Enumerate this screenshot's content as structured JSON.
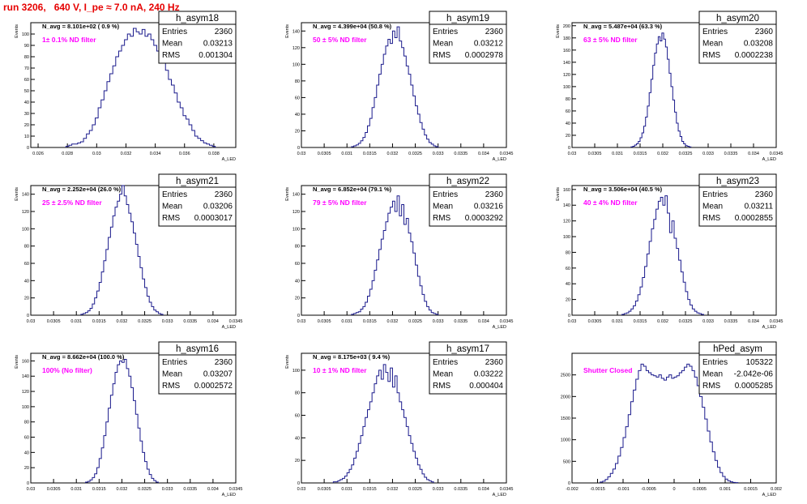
{
  "page": {
    "title": "run 3206,   640 V, I_pe ≈ 7.0 nA, 240 Hz"
  },
  "colors": {
    "histogram": "#1a1a8c",
    "annotation": "#ff00ff",
    "title": "#e60000",
    "axis": "#000000"
  },
  "chart_data": [
    {
      "type": "bar",
      "name": "h_asym18",
      "header": "N_avg = 8.101e+02 ( 0.9 %)",
      "annotation": "1± 0.1% ND filter",
      "stats": {
        "entries": "2360",
        "mean": "0.03213",
        "rms": "0.001304"
      },
      "xlabel": "A_LED",
      "ylabel": "Events",
      "xlim": [
        0.0255,
        0.0395
      ],
      "ylim": [
        0,
        110
      ],
      "xticks": [
        0.026,
        0.028,
        0.03,
        0.032,
        0.034,
        0.036,
        0.038
      ],
      "yticks": [
        0,
        10,
        20,
        30,
        40,
        50,
        60,
        70,
        80,
        90,
        100
      ],
      "hist": {
        "x_start": 0.0279,
        "bin_width": 0.0002,
        "values": [
          1,
          2,
          3,
          3,
          4,
          5,
          8,
          12,
          15,
          20,
          26,
          35,
          42,
          50,
          58,
          65,
          72,
          80,
          85,
          90,
          95,
          100,
          98,
          105,
          102,
          100,
          104,
          98,
          100,
          95,
          90,
          85,
          80,
          75,
          68,
          60,
          55,
          48,
          40,
          35,
          28,
          25,
          20,
          15,
          10,
          8,
          6,
          4,
          3,
          2,
          1
        ]
      }
    },
    {
      "type": "bar",
      "name": "h_asym19",
      "header": "N_avg = 4.399e+04 (50.8 %)",
      "annotation": "50 ± 5% ND filter",
      "stats": {
        "entries": "2360",
        "mean": "0.03212",
        "rms": "0.0002978"
      },
      "xlabel": "A_LED",
      "ylabel": "Events",
      "xlim": [
        0.03,
        0.0345
      ],
      "ylim": [
        0,
        150
      ],
      "xticks": [
        0.03,
        0.0305,
        0.031,
        0.0315,
        0.032,
        0.0325,
        0.033,
        0.0335,
        0.034,
        0.0345
      ],
      "yticks": [
        0,
        20,
        40,
        60,
        80,
        100,
        120,
        140
      ],
      "hist": {
        "x_start": 0.0311,
        "bin_width": 5e-05,
        "values": [
          1,
          2,
          3,
          5,
          8,
          12,
          18,
          26,
          35,
          48,
          60,
          75,
          88,
          100,
          112,
          122,
          130,
          125,
          140,
          132,
          145,
          128,
          120,
          110,
          98,
          88,
          75,
          62,
          50,
          40,
          30,
          22,
          15,
          10,
          6,
          4,
          2,
          1
        ]
      }
    },
    {
      "type": "bar",
      "name": "h_asym20",
      "header": "N_avg = 5.487e+04 (63.3 %)",
      "annotation": "63 ± 5% ND filter",
      "stats": {
        "entries": "2360",
        "mean": "0.03208",
        "rms": "0.0002238"
      },
      "xlabel": "A_LED",
      "ylabel": "Events",
      "xlim": [
        0.03,
        0.0345
      ],
      "ylim": [
        0,
        205
      ],
      "xticks": [
        0.03,
        0.0305,
        0.031,
        0.0315,
        0.032,
        0.0325,
        0.033,
        0.0335,
        0.034,
        0.0345
      ],
      "yticks": [
        0,
        20,
        40,
        60,
        80,
        100,
        120,
        140,
        160,
        180,
        200
      ],
      "hist": {
        "x_start": 0.0313,
        "bin_width": 4e-05,
        "values": [
          1,
          2,
          4,
          6,
          10,
          16,
          24,
          35,
          50,
          68,
          90,
          112,
          135,
          155,
          170,
          182,
          175,
          188,
          178,
          165,
          145,
          122,
          100,
          78,
          58,
          40,
          27,
          18,
          10,
          6,
          3,
          2,
          1
        ]
      }
    },
    {
      "type": "bar",
      "name": "h_asym21",
      "header": "N_avg = 2.252e+04 (26.0 %)",
      "annotation": "25 ± 2.5% ND filter",
      "stats": {
        "entries": "2360",
        "mean": "0.03206",
        "rms": "0.0003017"
      },
      "xlabel": "A_LED",
      "ylabel": "Events",
      "xlim": [
        0.03,
        0.0345
      ],
      "ylim": [
        0,
        150
      ],
      "xticks": [
        0.03,
        0.0305,
        0.031,
        0.0315,
        0.032,
        0.0325,
        0.033,
        0.0335,
        0.034,
        0.0345
      ],
      "yticks": [
        0,
        20,
        40,
        60,
        80,
        100,
        120,
        140
      ],
      "hist": {
        "x_start": 0.0311,
        "bin_width": 5e-05,
        "values": [
          1,
          2,
          3,
          5,
          8,
          13,
          20,
          28,
          38,
          50,
          63,
          76,
          90,
          102,
          115,
          125,
          132,
          140,
          150,
          138,
          128,
          118,
          108,
          95,
          82,
          68,
          55,
          42,
          32,
          22,
          15,
          10,
          6,
          4,
          2,
          1
        ]
      }
    },
    {
      "type": "bar",
      "name": "h_asym22",
      "header": "N_avg = 6.852e+04 (79.1 %)",
      "annotation": "79 ± 5% ND filter",
      "stats": {
        "entries": "2360",
        "mean": "0.03216",
        "rms": "0.0003292"
      },
      "xlabel": "A_LED",
      "ylabel": "Events",
      "xlim": [
        0.03,
        0.0345
      ],
      "ylim": [
        0,
        150
      ],
      "xticks": [
        0.03,
        0.0305,
        0.031,
        0.0315,
        0.032,
        0.0325,
        0.033,
        0.0335,
        0.034,
        0.0345
      ],
      "yticks": [
        0,
        20,
        40,
        60,
        80,
        100,
        120,
        140
      ],
      "hist": {
        "x_start": 0.0311,
        "bin_width": 5e-05,
        "values": [
          1,
          2,
          3,
          4,
          7,
          10,
          15,
          22,
          30,
          40,
          52,
          64,
          76,
          88,
          98,
          108,
          118,
          125,
          132,
          120,
          138,
          115,
          128,
          105,
          112,
          95,
          85,
          72,
          58,
          45,
          34,
          24,
          16,
          10,
          6,
          3,
          2,
          1
        ]
      }
    },
    {
      "type": "bar",
      "name": "h_asym23",
      "header": "N_avg = 3.506e+04 (40.5 %)",
      "annotation": "40 ± 4% ND filter",
      "stats": {
        "entries": "2360",
        "mean": "0.03211",
        "rms": "0.0002855"
      },
      "xlabel": "A_LED",
      "ylabel": "Events",
      "xlim": [
        0.03,
        0.0345
      ],
      "ylim": [
        0,
        165
      ],
      "xticks": [
        0.03,
        0.0305,
        0.031,
        0.0315,
        0.032,
        0.0325,
        0.033,
        0.0335,
        0.034,
        0.0345
      ],
      "yticks": [
        0,
        20,
        40,
        60,
        80,
        100,
        120,
        140,
        160
      ],
      "hist": {
        "x_start": 0.0311,
        "bin_width": 5e-05,
        "values": [
          1,
          2,
          3,
          5,
          8,
          12,
          18,
          26,
          36,
          48,
          62,
          78,
          94,
          110,
          122,
          135,
          145,
          150,
          140,
          152,
          130,
          105,
          120,
          98,
          85,
          70,
          55,
          42,
          30,
          20,
          13,
          8,
          5,
          3,
          2,
          1
        ]
      }
    },
    {
      "type": "bar",
      "name": "h_asym16",
      "header": "N_avg = 8.662e+04 (100.0 %)",
      "annotation": "100% (No filter)",
      "stats": {
        "entries": "2360",
        "mean": "0.03207",
        "rms": "0.0002572"
      },
      "xlabel": "A_LED",
      "ylabel": "Events",
      "xlim": [
        0.03,
        0.0345
      ],
      "ylim": [
        0,
        170
      ],
      "xticks": [
        0.03,
        0.0305,
        0.031,
        0.0315,
        0.032,
        0.0325,
        0.033,
        0.0335,
        0.034,
        0.0345
      ],
      "yticks": [
        0,
        20,
        40,
        60,
        80,
        100,
        120,
        140,
        160
      ],
      "hist": {
        "x_start": 0.0312,
        "bin_width": 5e-05,
        "values": [
          1,
          2,
          4,
          7,
          12,
          20,
          32,
          46,
          62,
          80,
          98,
          115,
          130,
          145,
          155,
          160,
          158,
          162,
          150,
          140,
          125,
          108,
          90,
          72,
          55,
          40,
          28,
          18,
          11,
          6,
          3,
          1
        ]
      }
    },
    {
      "type": "bar",
      "name": "h_asym17",
      "header": "N_avg = 8.175e+03 ( 9.4 %)",
      "annotation": "10 ± 1% ND filter",
      "stats": {
        "entries": "2360",
        "mean": "0.03222",
        "rms": "0.000404"
      },
      "xlabel": "A_LED",
      "ylabel": "Events",
      "xlim": [
        0.03,
        0.0345
      ],
      "ylim": [
        0,
        115
      ],
      "xticks": [
        0.03,
        0.0305,
        0.031,
        0.0315,
        0.032,
        0.0325,
        0.033,
        0.0335,
        0.034,
        0.0345
      ],
      "yticks": [
        0,
        20,
        40,
        60,
        80,
        100
      ],
      "hist": {
        "x_start": 0.0307,
        "bin_width": 5e-05,
        "values": [
          1,
          1,
          2,
          3,
          4,
          6,
          9,
          12,
          16,
          22,
          28,
          35,
          42,
          50,
          58,
          65,
          72,
          80,
          88,
          95,
          100,
          92,
          105,
          98,
          90,
          102,
          85,
          95,
          80,
          72,
          65,
          58,
          50,
          42,
          35,
          28,
          22,
          16,
          12,
          8,
          5,
          3,
          2,
          1
        ]
      }
    },
    {
      "type": "bar",
      "name": "hPed_asym",
      "header": "",
      "annotation": "Shutter Closed",
      "stats": {
        "entries": "105322",
        "mean": "-2.042e-06",
        "rms": "0.0005285"
      },
      "xlabel": "A_LED",
      "ylabel": "",
      "xlim": [
        -0.002,
        0.002
      ],
      "ylim": [
        0,
        3000
      ],
      "xticks": [
        -0.002,
        -0.0015,
        -0.001,
        -0.0005,
        0,
        0.0005,
        0.001,
        0.0015,
        0.002
      ],
      "yticks": [
        0,
        500,
        1000,
        1500,
        2000,
        2500
      ],
      "hist": {
        "x_start": -0.00145,
        "bin_width": 5e-05,
        "values": [
          20,
          40,
          80,
          140,
          220,
          320,
          450,
          620,
          820,
          1050,
          1300,
          1580,
          1880,
          2150,
          2400,
          2600,
          2750,
          2700,
          2600,
          2550,
          2500,
          2480,
          2450,
          2500,
          2420,
          2380,
          2450,
          2500,
          2420,
          2450,
          2480,
          2550,
          2600,
          2680,
          2750,
          2700,
          2600,
          2450,
          2250,
          2000,
          1750,
          1480,
          1200,
          950,
          720,
          520,
          360,
          240,
          150,
          90,
          50,
          25,
          12,
          6
        ]
      }
    }
  ]
}
